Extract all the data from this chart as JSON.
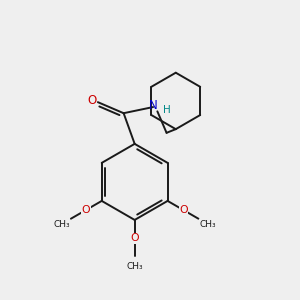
{
  "bg_color": "#efefef",
  "bond_color": "#1a1a1a",
  "O_color": "#cc0000",
  "N_color": "#0000cc",
  "H_color": "#008888",
  "lw": 1.4,
  "ring_r": 0.62,
  "chex_r": 0.46,
  "xlim": [
    -2.0,
    2.2
  ],
  "ylim": [
    -2.6,
    2.2
  ]
}
